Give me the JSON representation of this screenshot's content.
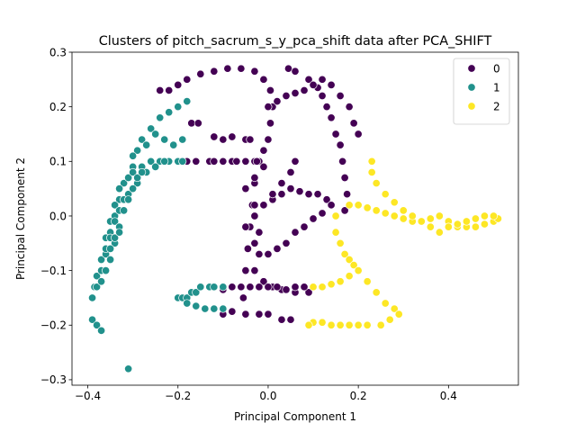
{
  "chart_data": {
    "type": "scatter",
    "title": "Clusters of pitch_sacrum_s_y_pca_shift data after PCA_SHIFT",
    "xlabel": "Principal Component 1",
    "ylabel": "Principal Component 2",
    "xlim": [
      -0.435,
      0.555
    ],
    "ylim": [
      -0.31,
      0.3
    ],
    "xticks": [
      -0.4,
      -0.2,
      0.0,
      0.2,
      0.4
    ],
    "xtick_labels": [
      "−0.4",
      "−0.2",
      "0.0",
      "0.2",
      "0.4"
    ],
    "yticks": [
      -0.3,
      -0.2,
      -0.1,
      0.0,
      0.1,
      0.2,
      0.3
    ],
    "ytick_labels": [
      "−0.3",
      "−0.2",
      "−0.1",
      "0.0",
      "0.1",
      "0.2",
      "0.3"
    ],
    "grid": false,
    "legend_placement": "top-right",
    "series": [
      {
        "name": "0",
        "color": "#440154",
        "points": [
          [
            -0.17,
            0.17
          ],
          [
            -0.155,
            0.17
          ],
          [
            -0.12,
            0.145
          ],
          [
            -0.1,
            0.14
          ],
          [
            -0.08,
            0.145
          ],
          [
            -0.05,
            0.14
          ],
          [
            -0.04,
            0.14
          ],
          [
            -0.18,
            0.1
          ],
          [
            -0.16,
            0.1
          ],
          [
            -0.13,
            0.1
          ],
          [
            -0.12,
            0.1
          ],
          [
            -0.1,
            0.1
          ],
          [
            -0.08,
            0.1
          ],
          [
            -0.07,
            0.1
          ],
          [
            -0.05,
            0.1
          ],
          [
            -0.03,
            0.1
          ],
          [
            -0.02,
            0.1
          ],
          [
            -0.24,
            0.23
          ],
          [
            -0.22,
            0.23
          ],
          [
            -0.2,
            0.24
          ],
          [
            -0.18,
            0.25
          ],
          [
            -0.15,
            0.26
          ],
          [
            -0.12,
            0.265
          ],
          [
            -0.09,
            0.27
          ],
          [
            -0.06,
            0.27
          ],
          [
            -0.03,
            0.265
          ],
          [
            -0.01,
            0.25
          ],
          [
            0.005,
            0.23
          ],
          [
            0.01,
            0.2
          ],
          [
            0.005,
            0.17
          ],
          [
            0.0,
            0.14
          ],
          [
            -0.01,
            0.12
          ],
          [
            -0.025,
            0.1
          ],
          [
            -0.03,
            0.06
          ],
          [
            -0.035,
            0.02
          ],
          [
            -0.04,
            -0.02
          ],
          [
            -0.045,
            -0.06
          ],
          [
            -0.05,
            -0.1
          ],
          [
            -0.055,
            -0.15
          ],
          [
            0.045,
            0.27
          ],
          [
            0.06,
            0.265
          ],
          [
            0.09,
            0.25
          ],
          [
            0.11,
            0.235
          ],
          [
            0.12,
            0.22
          ],
          [
            0.13,
            0.2
          ],
          [
            0.14,
            0.18
          ],
          [
            0.15,
            0.15
          ],
          [
            0.16,
            0.13
          ],
          [
            0.165,
            0.1
          ],
          [
            0.17,
            0.07
          ],
          [
            0.175,
            0.04
          ],
          [
            0.17,
            0.01
          ],
          [
            0.0,
            0.2
          ],
          [
            0.02,
            0.21
          ],
          [
            0.04,
            0.22
          ],
          [
            0.06,
            0.225
          ],
          [
            0.08,
            0.23
          ],
          [
            0.1,
            0.24
          ],
          [
            0.12,
            0.25
          ],
          [
            0.14,
            0.24
          ],
          [
            0.16,
            0.22
          ],
          [
            0.18,
            0.2
          ],
          [
            0.19,
            0.17
          ],
          [
            0.2,
            0.15
          ],
          [
            -0.03,
            0.02
          ],
          [
            -0.01,
            0.02
          ],
          [
            0.01,
            0.03
          ],
          [
            0.03,
            0.04
          ],
          [
            0.05,
            0.05
          ],
          [
            0.07,
            0.045
          ],
          [
            0.09,
            0.04
          ],
          [
            0.11,
            0.04
          ],
          [
            0.13,
            0.03
          ],
          [
            0.14,
            0.02
          ],
          [
            0.12,
            0.005
          ],
          [
            0.1,
            -0.005
          ],
          [
            0.08,
            -0.02
          ],
          [
            0.06,
            -0.03
          ],
          [
            0.04,
            -0.05
          ],
          [
            0.02,
            -0.06
          ],
          [
            0.0,
            -0.07
          ],
          [
            -0.02,
            -0.07
          ],
          [
            -0.03,
            -0.05
          ],
          [
            -0.02,
            -0.03
          ],
          [
            -0.05,
            -0.02
          ],
          [
            -0.03,
            0.0
          ],
          [
            -0.01,
            0.02
          ],
          [
            0.01,
            0.04
          ],
          [
            0.03,
            0.06
          ],
          [
            0.05,
            0.08
          ],
          [
            0.06,
            0.1
          ],
          [
            -0.05,
            0.05
          ],
          [
            -0.03,
            0.07
          ],
          [
            -0.01,
            0.09
          ],
          [
            -0.03,
            -0.1
          ],
          [
            -0.01,
            -0.12
          ],
          [
            0.01,
            -0.13
          ],
          [
            0.03,
            -0.135
          ],
          [
            0.06,
            -0.14
          ],
          [
            0.09,
            -0.14
          ],
          [
            -0.12,
            -0.13
          ],
          [
            -0.1,
            -0.135
          ],
          [
            -0.08,
            -0.13
          ],
          [
            -0.06,
            -0.13
          ],
          [
            -0.04,
            -0.13
          ],
          [
            -0.02,
            -0.13
          ],
          [
            0.0,
            -0.13
          ],
          [
            0.02,
            -0.13
          ],
          [
            0.04,
            -0.135
          ],
          [
            0.06,
            -0.13
          ],
          [
            0.08,
            -0.13
          ],
          [
            -0.1,
            -0.18
          ],
          [
            -0.08,
            -0.175
          ],
          [
            -0.05,
            -0.18
          ],
          [
            -0.02,
            -0.18
          ],
          [
            0.0,
            -0.18
          ],
          [
            0.03,
            -0.19
          ],
          [
            0.05,
            -0.19
          ]
        ]
      },
      {
        "name": "1",
        "color": "#21918c",
        "points": [
          [
            -0.39,
            -0.15
          ],
          [
            -0.385,
            -0.13
          ],
          [
            -0.37,
            -0.1
          ],
          [
            -0.36,
            -0.07
          ],
          [
            -0.35,
            -0.03
          ],
          [
            -0.34,
            0.0
          ],
          [
            -0.33,
            0.03
          ],
          [
            -0.32,
            0.06
          ],
          [
            -0.3,
            0.09
          ],
          [
            -0.29,
            0.12
          ],
          [
            -0.28,
            0.14
          ],
          [
            -0.26,
            0.16
          ],
          [
            -0.24,
            0.18
          ],
          [
            -0.22,
            0.19
          ],
          [
            -0.2,
            0.2
          ],
          [
            -0.18,
            0.21
          ],
          [
            -0.38,
            -0.11
          ],
          [
            -0.37,
            -0.08
          ],
          [
            -0.36,
            -0.04
          ],
          [
            -0.35,
            -0.01
          ],
          [
            -0.34,
            0.02
          ],
          [
            -0.33,
            0.05
          ],
          [
            -0.31,
            0.07
          ],
          [
            -0.3,
            0.08
          ],
          [
            -0.28,
            0.09
          ],
          [
            -0.26,
            0.1
          ],
          [
            -0.24,
            0.1
          ],
          [
            -0.22,
            0.1
          ],
          [
            -0.2,
            0.1
          ],
          [
            -0.19,
            0.1
          ],
          [
            -0.38,
            -0.13
          ],
          [
            -0.37,
            -0.1
          ],
          [
            -0.36,
            -0.07
          ],
          [
            -0.35,
            -0.04
          ],
          [
            -0.34,
            -0.01
          ],
          [
            -0.33,
            0.01
          ],
          [
            -0.32,
            0.03
          ],
          [
            -0.31,
            0.04
          ],
          [
            -0.29,
            0.06
          ],
          [
            -0.27,
            0.08
          ],
          [
            -0.25,
            0.09
          ],
          [
            -0.23,
            0.1
          ],
          [
            -0.37,
            -0.12
          ],
          [
            -0.36,
            -0.1
          ],
          [
            -0.35,
            -0.08
          ],
          [
            -0.34,
            -0.05
          ],
          [
            -0.33,
            -0.02
          ],
          [
            -0.32,
            0.01
          ],
          [
            -0.31,
            0.03
          ],
          [
            -0.3,
            0.05
          ],
          [
            -0.29,
            0.07
          ],
          [
            -0.28,
            0.08
          ],
          [
            -0.39,
            -0.19
          ],
          [
            -0.38,
            -0.2
          ],
          [
            -0.37,
            -0.21
          ],
          [
            -0.36,
            -0.06
          ],
          [
            -0.35,
            -0.06
          ],
          [
            -0.34,
            -0.04
          ],
          [
            -0.33,
            -0.03
          ],
          [
            -0.3,
            0.11
          ],
          [
            -0.27,
            0.13
          ],
          [
            -0.25,
            0.15
          ],
          [
            -0.23,
            0.14
          ],
          [
            -0.21,
            0.13
          ],
          [
            -0.19,
            0.14
          ],
          [
            -0.2,
            -0.15
          ],
          [
            -0.19,
            -0.15
          ],
          [
            -0.18,
            -0.15
          ],
          [
            -0.17,
            -0.14
          ],
          [
            -0.16,
            -0.14
          ],
          [
            -0.15,
            -0.13
          ],
          [
            -0.13,
            -0.13
          ],
          [
            -0.12,
            -0.13
          ],
          [
            -0.1,
            -0.13
          ],
          [
            -0.18,
            -0.16
          ],
          [
            -0.16,
            -0.165
          ],
          [
            -0.14,
            -0.17
          ],
          [
            -0.12,
            -0.17
          ],
          [
            -0.1,
            -0.17
          ],
          [
            -0.31,
            -0.28
          ]
        ]
      },
      {
        "name": "2",
        "color": "#fde725",
        "points": [
          [
            0.18,
            0.02
          ],
          [
            0.2,
            0.02
          ],
          [
            0.22,
            0.015
          ],
          [
            0.24,
            0.01
          ],
          [
            0.26,
            0.005
          ],
          [
            0.28,
            0.0
          ],
          [
            0.3,
            -0.005
          ],
          [
            0.32,
            -0.01
          ],
          [
            0.34,
            -0.01
          ],
          [
            0.36,
            -0.005
          ],
          [
            0.38,
            0.0
          ],
          [
            0.4,
            -0.01
          ],
          [
            0.42,
            -0.02
          ],
          [
            0.44,
            -0.02
          ],
          [
            0.46,
            -0.02
          ],
          [
            0.48,
            -0.015
          ],
          [
            0.5,
            -0.01
          ],
          [
            0.51,
            -0.005
          ],
          [
            0.5,
            0.0
          ],
          [
            0.48,
            0.0
          ],
          [
            0.46,
            -0.005
          ],
          [
            0.44,
            -0.01
          ],
          [
            0.42,
            -0.015
          ],
          [
            0.4,
            -0.02
          ],
          [
            0.38,
            -0.03
          ],
          [
            0.36,
            -0.02
          ],
          [
            0.34,
            -0.01
          ],
          [
            0.32,
            0.0
          ],
          [
            0.3,
            0.01
          ],
          [
            0.28,
            0.025
          ],
          [
            0.26,
            0.04
          ],
          [
            0.24,
            0.06
          ],
          [
            0.23,
            0.08
          ],
          [
            0.23,
            0.1
          ],
          [
            0.15,
            0.0
          ],
          [
            0.15,
            -0.03
          ],
          [
            0.16,
            -0.05
          ],
          [
            0.17,
            -0.07
          ],
          [
            0.18,
            -0.08
          ],
          [
            0.19,
            -0.09
          ],
          [
            0.2,
            -0.1
          ],
          [
            0.18,
            -0.11
          ],
          [
            0.16,
            -0.12
          ],
          [
            0.14,
            -0.125
          ],
          [
            0.12,
            -0.13
          ],
          [
            0.1,
            -0.13
          ],
          [
            0.22,
            -0.12
          ],
          [
            0.24,
            -0.14
          ],
          [
            0.26,
            -0.16
          ],
          [
            0.28,
            -0.17
          ],
          [
            0.29,
            -0.18
          ],
          [
            0.27,
            -0.19
          ],
          [
            0.25,
            -0.2
          ],
          [
            0.22,
            -0.2
          ],
          [
            0.2,
            -0.2
          ],
          [
            0.18,
            -0.2
          ],
          [
            0.16,
            -0.2
          ],
          [
            0.14,
            -0.2
          ],
          [
            0.12,
            -0.195
          ],
          [
            0.1,
            -0.195
          ],
          [
            0.09,
            -0.2
          ]
        ]
      }
    ]
  }
}
